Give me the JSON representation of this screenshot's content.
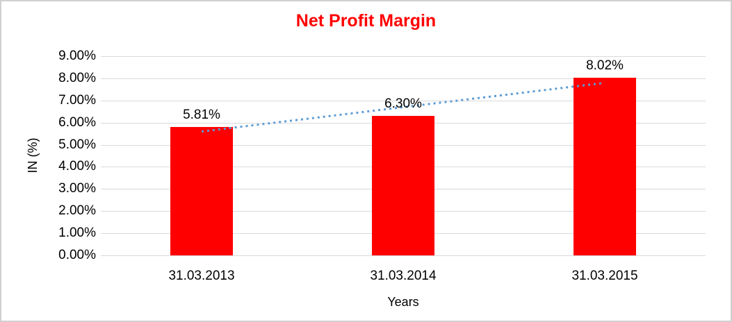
{
  "window": {
    "background": "#FFFFFF",
    "border_color": "#CFCFCF"
  },
  "chart_data": {
    "type": "bar",
    "title": "Net Profit Margin",
    "title_color": "#FF0000",
    "categories": [
      "31.03.2013",
      "31.03.2014",
      "31.03.2015"
    ],
    "values": [
      5.81,
      6.3,
      8.02
    ],
    "data_labels": [
      "5.81%",
      "6.30%",
      "8.02%"
    ],
    "bar_color": "#FF0000",
    "xlabel": "Years",
    "ylabel": "IN (%)",
    "ylim": [
      0,
      9
    ],
    "ytick_step": 1,
    "ytick_labels": [
      "0.00%",
      "1.00%",
      "2.00%",
      "3.00%",
      "4.00%",
      "5.00%",
      "6.00%",
      "7.00%",
      "8.00%",
      "9.00%"
    ],
    "grid": true,
    "gridline_color": "#D9D9D9",
    "axis_text_color": "#000000",
    "legend": "none",
    "trendline": {
      "type": "linear",
      "style": "dotted",
      "color": "#5B9BD5",
      "start_value": 5.61,
      "end_value": 7.81
    }
  }
}
